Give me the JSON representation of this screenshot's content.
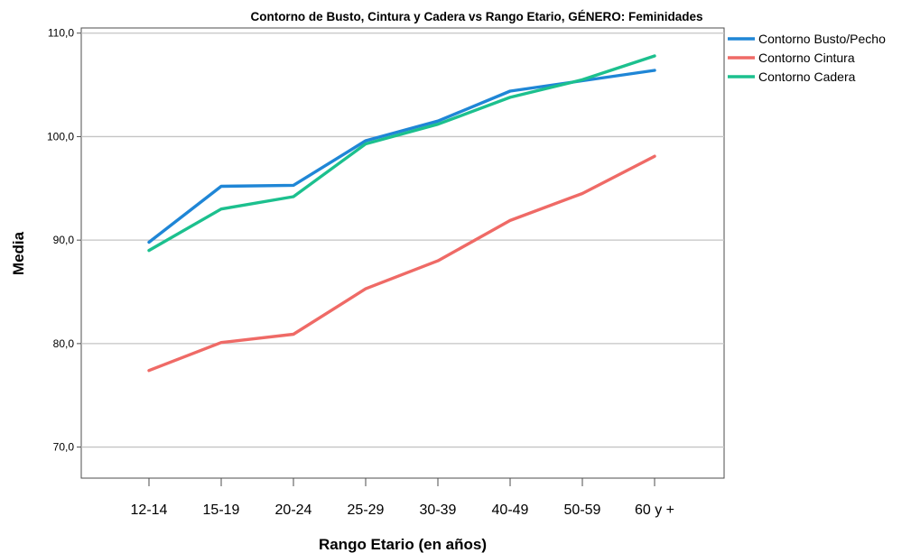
{
  "chart_data": {
    "type": "line",
    "title": "Contorno de Busto, Cintura y Cadera vs Rango Etario, GÉNERO: Feminidades",
    "xlabel": "Rango Etario (en años)",
    "ylabel": "Media",
    "categories": [
      "12-14",
      "15-19",
      "20-24",
      "25-29",
      "30-39",
      "40-49",
      "50-59",
      "60 y +"
    ],
    "ylim": [
      67,
      110.5
    ],
    "yticks": [
      70,
      80,
      90,
      100,
      110
    ],
    "ytick_labels": [
      "70,0",
      "80,0",
      "90,0",
      "100,0",
      "110,0"
    ],
    "grid": "horizontal",
    "legend_position": "top-right",
    "series": [
      {
        "name": "Contorno Busto/Pecho",
        "color": "#1f86d6",
        "values": [
          89.8,
          95.2,
          95.3,
          99.6,
          101.5,
          104.4,
          105.4,
          106.4
        ]
      },
      {
        "name": "Contorno Cintura",
        "color": "#ef6a66",
        "values": [
          77.4,
          80.1,
          80.9,
          85.3,
          88.0,
          91.9,
          94.5,
          98.1
        ]
      },
      {
        "name": "Contorno Cadera",
        "color": "#1cc08e",
        "values": [
          89.0,
          93.0,
          94.2,
          99.3,
          101.2,
          103.8,
          105.5,
          107.8
        ]
      }
    ]
  }
}
